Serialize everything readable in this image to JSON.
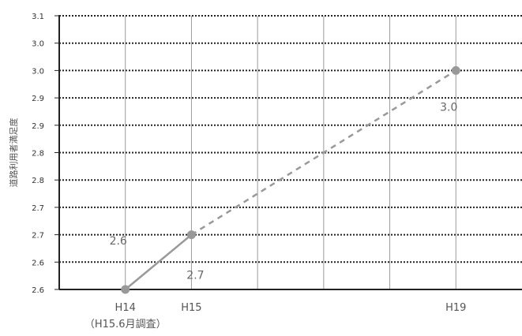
{
  "chart_data": {
    "type": "line",
    "ylabel": "道路利用者満足度",
    "xlabel": "",
    "ylim": [
      2.6,
      3.1
    ],
    "y_tick_labels": [
      "2.6",
      "2.6",
      "2.7",
      "2.7",
      "2.8",
      "2.8",
      "2.9",
      "2.9",
      "3.0",
      "3.0",
      "3.1"
    ],
    "categories": [
      "H14",
      "H15",
      "",
      "",
      "",
      "H19"
    ],
    "category_notes": [
      "（H15.6月調査）",
      "",
      "",
      "",
      "",
      ""
    ],
    "series": [
      {
        "points": [
          {
            "x": "H14",
            "y": 2.6,
            "label": "2.6"
          },
          {
            "x": "H15",
            "y": 2.7,
            "label": "2.7"
          },
          {
            "x": "H19",
            "y": 3.0,
            "label": "3.0"
          }
        ],
        "color": "#999999",
        "segment_styles": [
          "solid",
          "dashed"
        ]
      }
    ],
    "grid": "horizontal dotted, vertical solid",
    "legend": "none"
  }
}
